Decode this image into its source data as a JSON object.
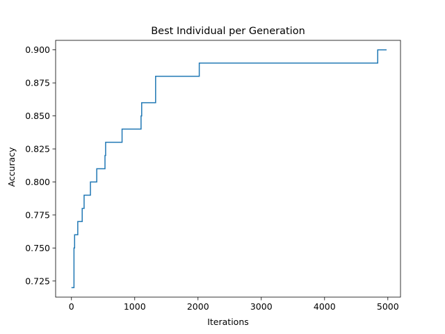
{
  "chart_data": {
    "type": "line",
    "title": "Best Individual per Generation",
    "xlabel": "Iterations",
    "ylabel": "Accuracy",
    "xlim": [
      -250,
      5200
    ],
    "ylim": [
      0.7128,
      0.9072
    ],
    "grid": false,
    "x_ticks": [
      0,
      1000,
      2000,
      3000,
      4000,
      5000
    ],
    "x_tick_labels": [
      "0",
      "1000",
      "2000",
      "3000",
      "4000",
      "5000"
    ],
    "y_ticks": [
      0.725,
      0.75,
      0.775,
      0.8,
      0.825,
      0.85,
      0.875,
      0.9
    ],
    "y_tick_labels": [
      "0.725",
      "0.750",
      "0.775",
      "0.800",
      "0.825",
      "0.850",
      "0.875",
      "0.900"
    ],
    "series": [
      {
        "color": "#1f77b4",
        "step": true,
        "points": [
          [
            0,
            0.72
          ],
          [
            40,
            0.72
          ],
          [
            40,
            0.75
          ],
          [
            50,
            0.75
          ],
          [
            50,
            0.76
          ],
          [
            100,
            0.76
          ],
          [
            100,
            0.77
          ],
          [
            170,
            0.77
          ],
          [
            170,
            0.78
          ],
          [
            200,
            0.78
          ],
          [
            200,
            0.79
          ],
          [
            300,
            0.79
          ],
          [
            300,
            0.8
          ],
          [
            400,
            0.8
          ],
          [
            400,
            0.81
          ],
          [
            530,
            0.81
          ],
          [
            530,
            0.82
          ],
          [
            540,
            0.82
          ],
          [
            540,
            0.83
          ],
          [
            800,
            0.83
          ],
          [
            800,
            0.84
          ],
          [
            1100,
            0.84
          ],
          [
            1100,
            0.85
          ],
          [
            1110,
            0.85
          ],
          [
            1110,
            0.86
          ],
          [
            1330,
            0.86
          ],
          [
            1330,
            0.88
          ],
          [
            2020,
            0.88
          ],
          [
            2020,
            0.89
          ],
          [
            4840,
            0.89
          ],
          [
            4840,
            0.9
          ],
          [
            4980,
            0.9
          ]
        ]
      }
    ]
  }
}
